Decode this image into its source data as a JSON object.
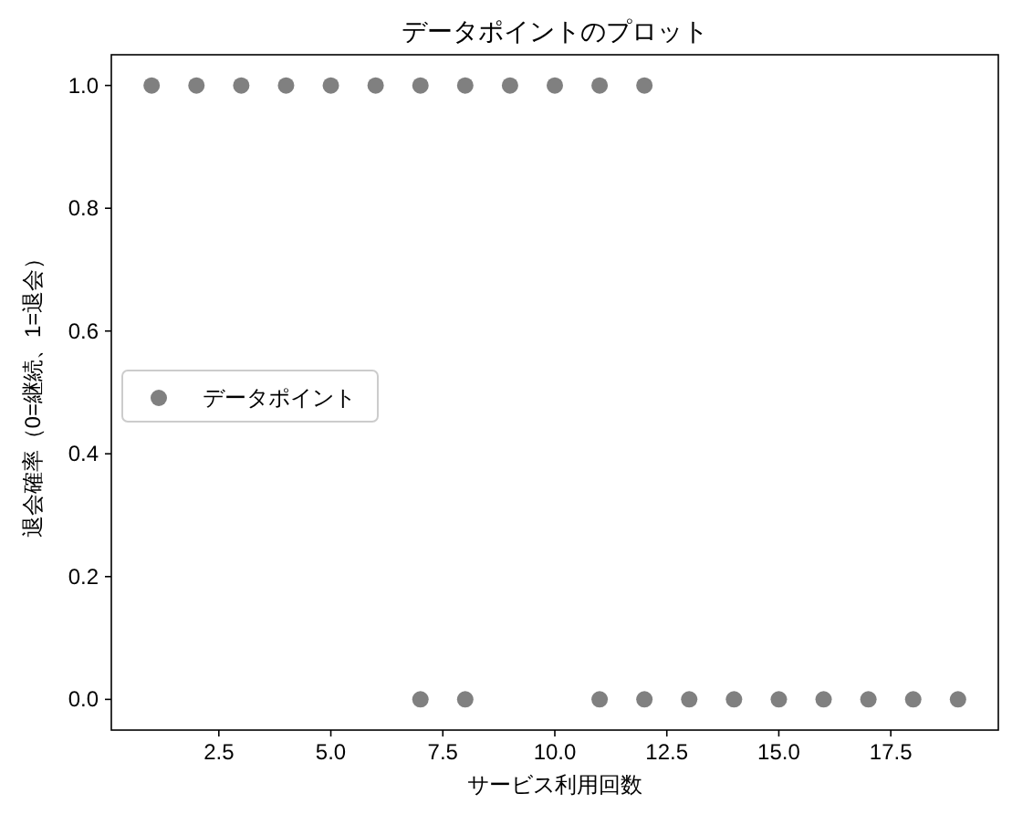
{
  "chart_data": {
    "type": "scatter",
    "title": "データポイントのプロット",
    "xlabel": "サービス利用回数",
    "ylabel": "退会確率（0=継続、1=退会）",
    "x": [
      1,
      2,
      3,
      4,
      5,
      6,
      7,
      8,
      9,
      10,
      11,
      12,
      7,
      8,
      11,
      12,
      13,
      14,
      15,
      16,
      17,
      18,
      19
    ],
    "series": [
      {
        "name": "データポイント",
        "color": "#808080",
        "values": [
          1,
          1,
          1,
          1,
          1,
          1,
          1,
          1,
          1,
          1,
          1,
          1,
          0,
          0,
          0,
          0,
          0,
          0,
          0,
          0,
          0,
          0,
          0
        ]
      }
    ],
    "xlim": [
      0.1,
      19.9
    ],
    "ylim": [
      -0.05,
      1.05
    ],
    "xticks": [
      {
        "value": 2.5,
        "label": "2.5"
      },
      {
        "value": 5,
        "label": "5.0"
      },
      {
        "value": 7.5,
        "label": "7.5"
      },
      {
        "value": 10,
        "label": "10.0"
      },
      {
        "value": 12.5,
        "label": "12.5"
      },
      {
        "value": 15,
        "label": "15.0"
      },
      {
        "value": 17.5,
        "label": "17.5"
      }
    ],
    "yticks": [
      {
        "value": 0,
        "label": "0.0"
      },
      {
        "value": 0.2,
        "label": "0.2"
      },
      {
        "value": 0.4,
        "label": "0.4"
      },
      {
        "value": 0.6,
        "label": "0.6"
      },
      {
        "value": 0.8,
        "label": "0.8"
      },
      {
        "value": 1,
        "label": "1.0"
      }
    ],
    "marker": "circle",
    "legend": "center left",
    "grid": false
  }
}
